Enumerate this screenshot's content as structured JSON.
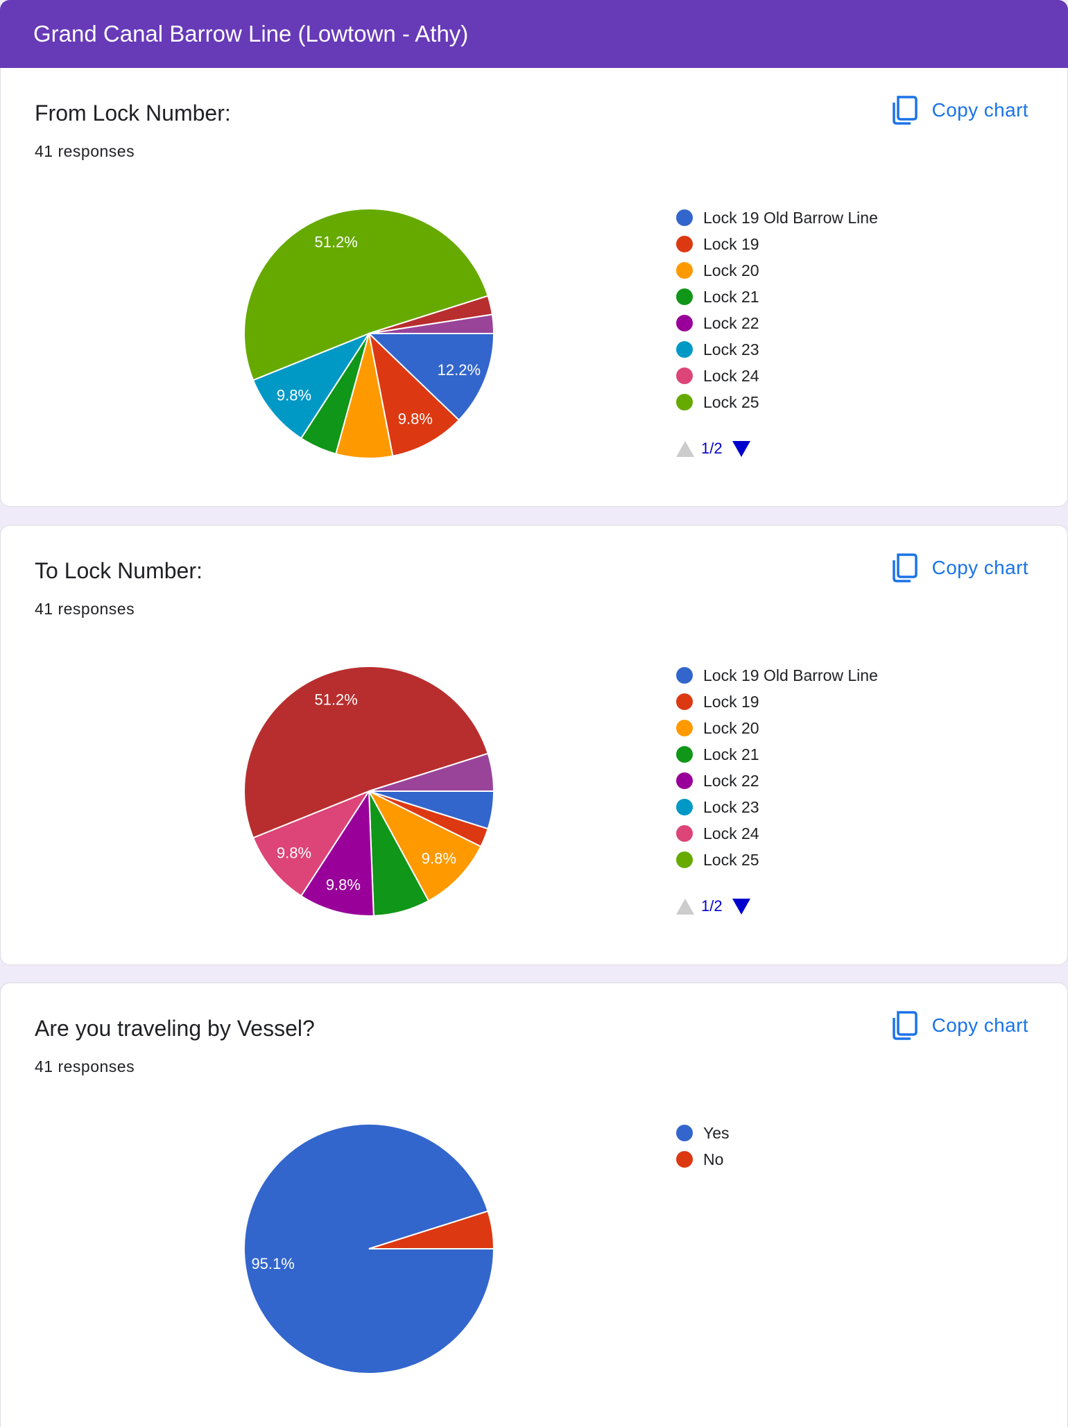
{
  "header": {
    "title": "Grand Canal Barrow Line (Lowtown - Athy)"
  },
  "copy_label": "Copy chart",
  "icons": {
    "copy": "copy-icon",
    "page_prev": "triangle-up-icon",
    "page_next": "triangle-down-icon"
  },
  "colors": {
    "header": "#673ab7",
    "background": "#f0ebf8",
    "link": "#1a73e8",
    "pager": "#0000cc"
  },
  "questions": [
    {
      "title": "From Lock Number:",
      "count": "41 responses",
      "page": "1/2"
    },
    {
      "title": "To Lock Number:",
      "count": "41 responses",
      "page": "1/2"
    },
    {
      "title": "Are you traveling by Vessel?",
      "count": "41 responses"
    }
  ],
  "chart_data": [
    {
      "type": "pie",
      "title": "From Lock Number:",
      "total": 41,
      "legend_position": "right",
      "slices": [
        {
          "label": "Lock 19 Old Barrow Line",
          "value": 5,
          "percent_label": "12.2%",
          "color": "#3366cc"
        },
        {
          "label": "Lock 19",
          "value": 4,
          "percent_label": "9.8%",
          "color": "#dc3912"
        },
        {
          "label": "Lock 20",
          "value": 3,
          "color": "#ff9900"
        },
        {
          "label": "Lock 21",
          "value": 2,
          "color": "#109618"
        },
        {
          "label": "Lock 22",
          "value": 0,
          "color": "#990099"
        },
        {
          "label": "Lock 23",
          "value": 4,
          "percent_label": "9.8%",
          "color": "#0099c6"
        },
        {
          "label": "Lock 24",
          "value": 0,
          "color": "#dd4477"
        },
        {
          "label": "Lock 25",
          "value": 21,
          "percent_label": "51.2%",
          "color": "#66aa00"
        },
        {
          "label": "",
          "value": 1,
          "color": "#b82e2e"
        },
        {
          "label": "",
          "value": 1,
          "color": "#994499"
        }
      ]
    },
    {
      "type": "pie",
      "title": "To Lock Number:",
      "total": 41,
      "legend_position": "right",
      "slices": [
        {
          "label": "Lock 19 Old Barrow Line",
          "value": 2,
          "color": "#3366cc"
        },
        {
          "label": "Lock 19",
          "value": 1,
          "color": "#dc3912"
        },
        {
          "label": "Lock 20",
          "value": 4,
          "percent_label": "9.8%",
          "color": "#ff9900"
        },
        {
          "label": "Lock 21",
          "value": 3,
          "color": "#109618"
        },
        {
          "label": "Lock 22",
          "value": 4,
          "percent_label": "9.8%",
          "color": "#990099"
        },
        {
          "label": "Lock 23",
          "value": 0,
          "color": "#0099c6"
        },
        {
          "label": "Lock 24",
          "value": 4,
          "percent_label": "9.8%",
          "color": "#dd4477"
        },
        {
          "label": "Lock 25",
          "value": 0,
          "color": "#66aa00"
        },
        {
          "label": "",
          "value": 21,
          "percent_label": "51.2%",
          "color": "#b82e2e"
        },
        {
          "label": "",
          "value": 2,
          "color": "#994499"
        }
      ]
    },
    {
      "type": "pie",
      "title": "Are you traveling by Vessel?",
      "total": 41,
      "legend_position": "right",
      "slices": [
        {
          "label": "Yes",
          "value": 39,
          "percent_label": "95.1%",
          "color": "#3366cc"
        },
        {
          "label": "No",
          "value": 2,
          "color": "#dc3912"
        }
      ]
    }
  ]
}
